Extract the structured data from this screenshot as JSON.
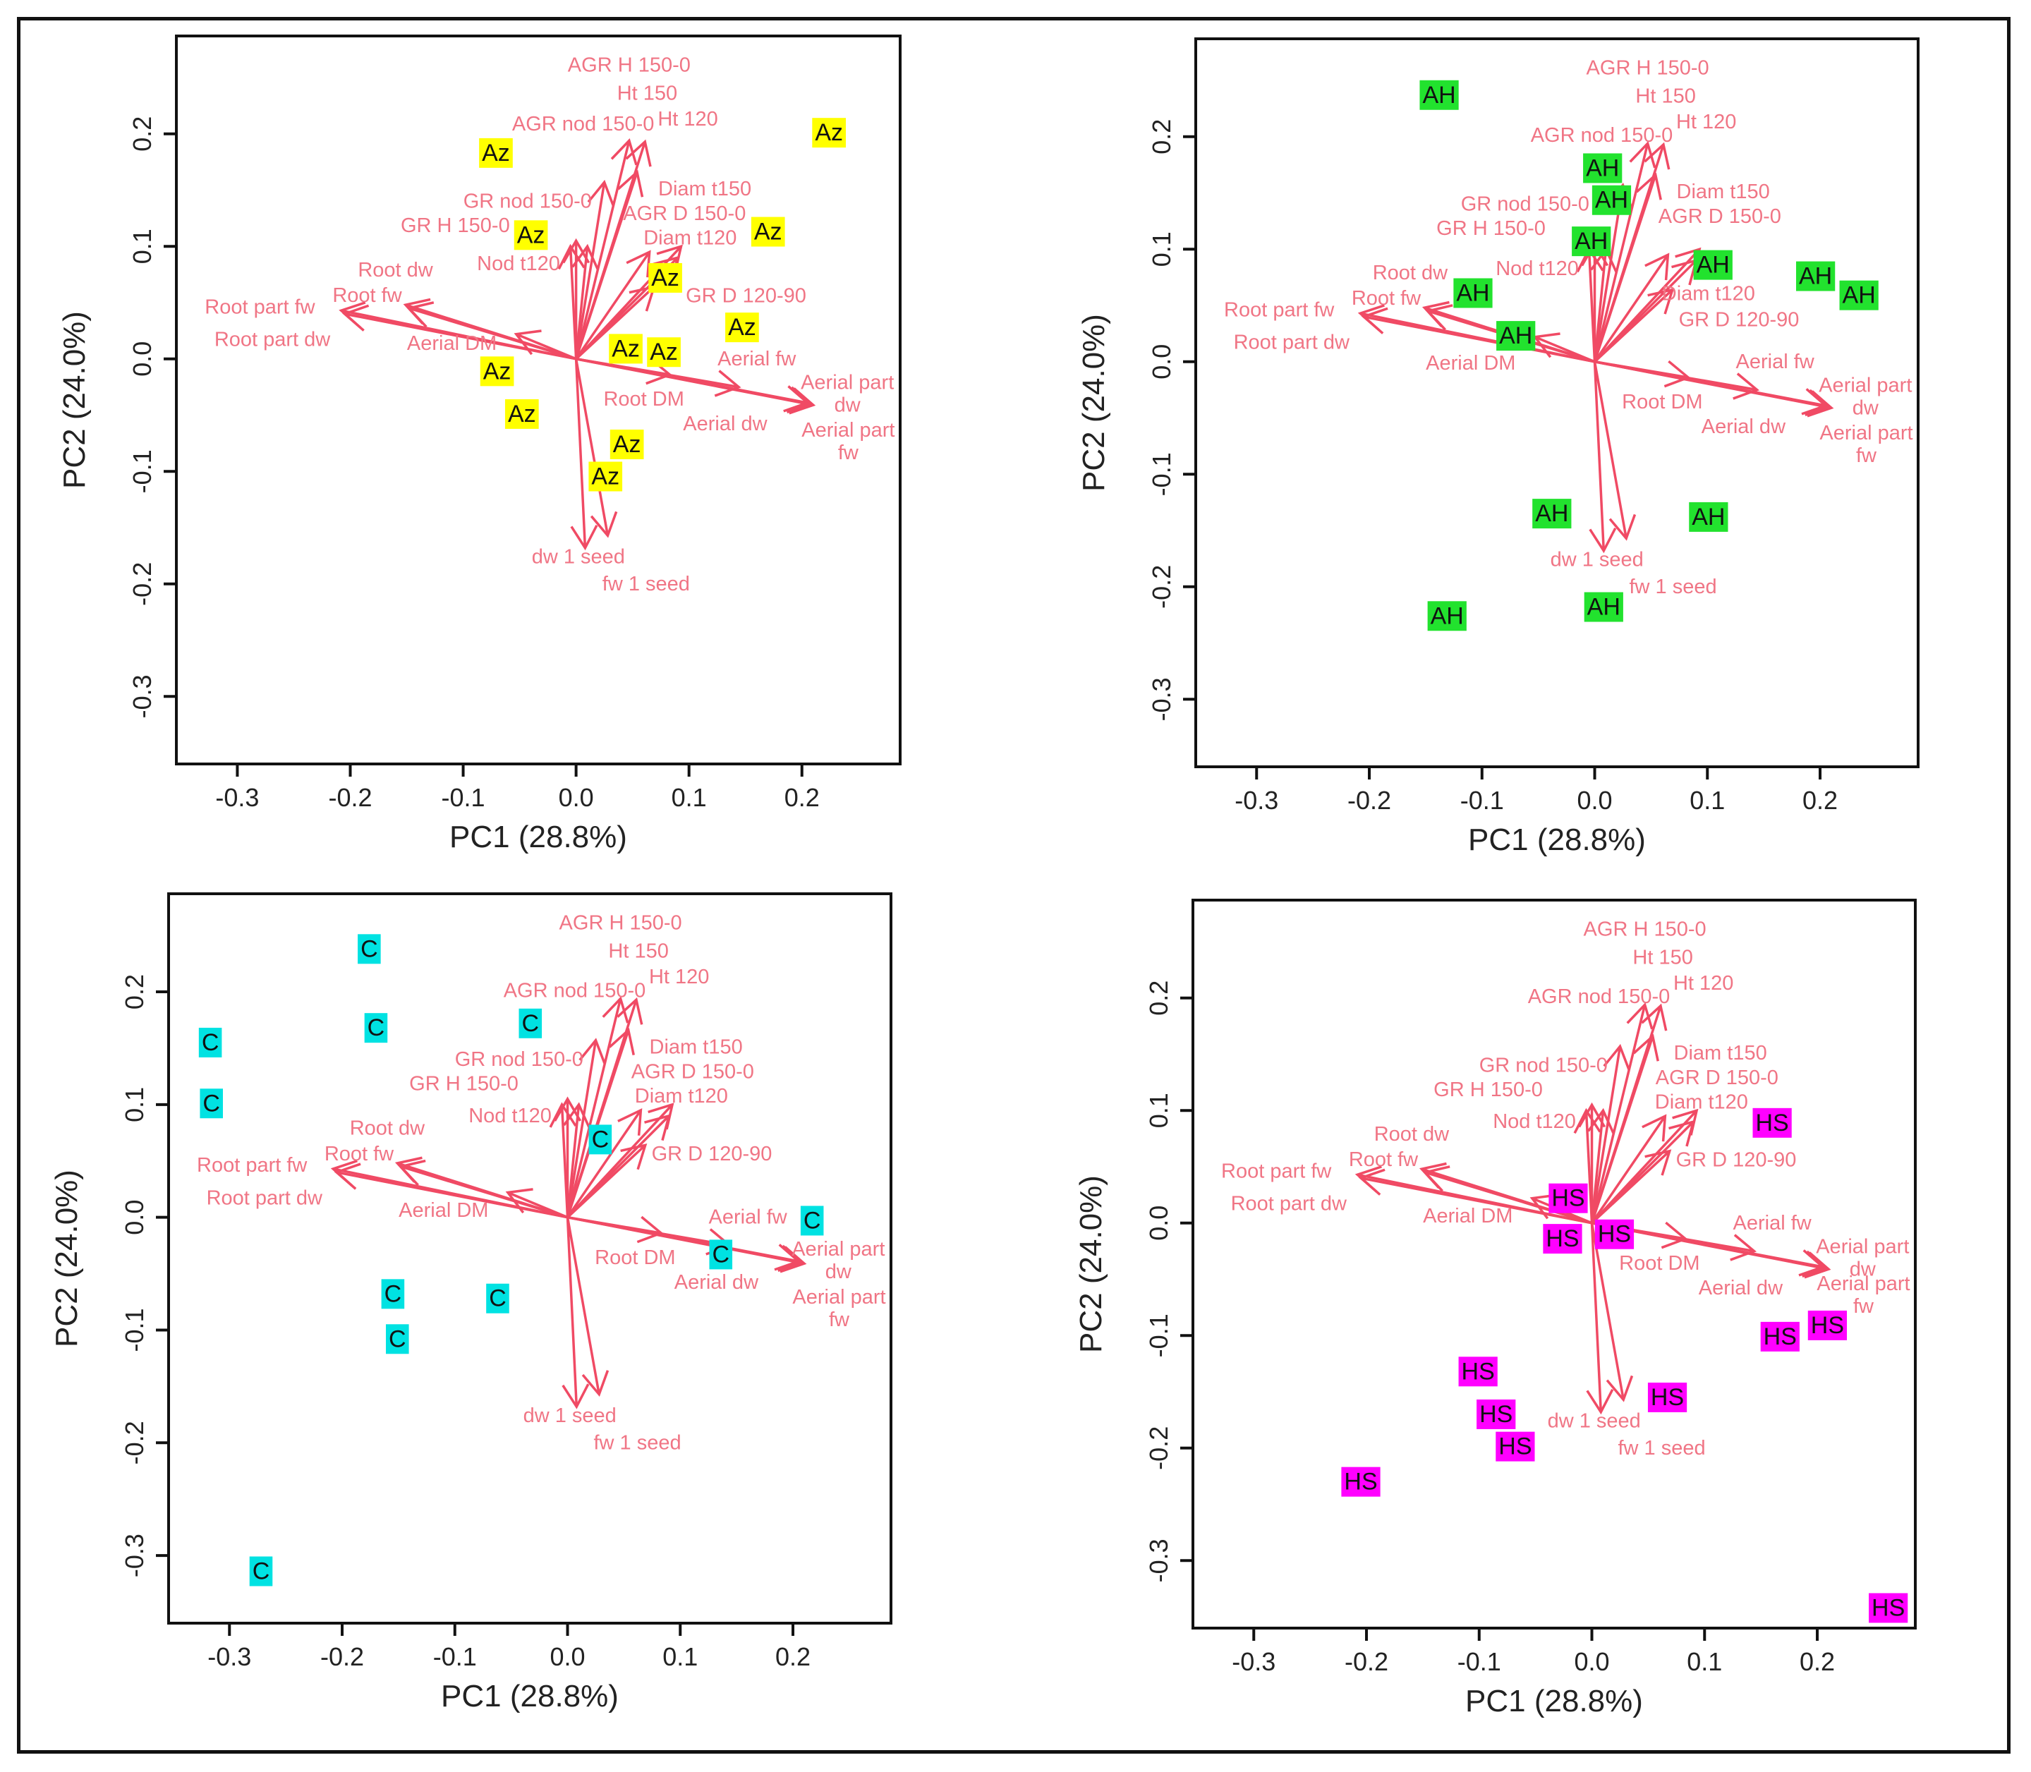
{
  "chart_data": {
    "type": "scatter",
    "subtype": "PCA biplot",
    "xlabel": "PC1 (28.8%)",
    "ylabel": "PC2 (24.0%)",
    "xlim": [
      -0.354,
      0.287
    ],
    "ylim": [
      -0.36,
      0.287
    ],
    "xticks": [
      -0.3,
      -0.2,
      -0.1,
      0.0,
      0.1,
      0.2
    ],
    "yticks": [
      -0.3,
      -0.2,
      -0.1,
      0.0,
      0.1,
      0.2
    ],
    "xtick_labels": [
      "-0.3",
      "-0.2",
      "-0.1",
      "0.0",
      "0.1",
      "0.2"
    ],
    "ytick_labels": [
      "-0.3",
      "-0.2",
      "-0.1",
      "0.0",
      "0.1",
      "0.2"
    ],
    "grid": false,
    "arrow_color": "#f04a64",
    "arrow_label_color": "#f07585",
    "loadings": [
      {
        "lines": [
          "Root part fw"
        ],
        "tip": [
          -0.208,
          0.043
        ],
        "label_at": [
          -0.28,
          0.046
        ]
      },
      {
        "lines": [
          "Root part dw"
        ],
        "tip": [
          -0.205,
          0.04
        ],
        "label_at": [
          -0.269,
          0.017
        ]
      },
      {
        "lines": [
          "Root dw"
        ],
        "tip": [
          -0.151,
          0.048
        ],
        "label_at": [
          -0.16,
          0.079
        ]
      },
      {
        "lines": [
          "Root fw"
        ],
        "tip": [
          -0.148,
          0.045
        ],
        "label_at": [
          -0.185,
          0.06
        ]
      },
      {
        "lines": [
          "Aerial DM"
        ],
        "tip": [
          -0.053,
          0.022
        ],
        "label_at": [
          -0.11,
          0.006
        ]
      },
      {
        "lines": [
          "Root DM"
        ],
        "tip": [
          0.083,
          -0.014
        ],
        "label_at": [
          0.06,
          -0.036
        ]
      },
      {
        "lines": [
          "Aerial fw"
        ],
        "tip": [
          0.144,
          -0.025
        ],
        "label_at": [
          0.16,
          0.0
        ]
      },
      {
        "lines": [
          "Aerial dw"
        ],
        "tip": [
          0.205,
          -0.039
        ],
        "label_at": [
          0.132,
          -0.056
        ]
      },
      {
        "lines": [
          "Aerial part",
          "dw"
        ],
        "tip": [
          0.208,
          -0.04
        ],
        "label_at": [
          0.244,
          -0.021
        ]
      },
      {
        "lines": [
          "Aerial part",
          "fw"
        ],
        "tip": [
          0.21,
          -0.041
        ],
        "label_at": [
          0.241,
          -0.054
        ]
      },
      {
        "lines": [
          "dw 1 seed"
        ],
        "tip": [
          0.008,
          -0.168
        ],
        "label_at": [
          0.002,
          -0.176
        ]
      },
      {
        "lines": [
          "fw 1 seed"
        ],
        "tip": [
          0.028,
          -0.157
        ],
        "label_at": [
          0.062,
          -0.2
        ]
      },
      {
        "lines": [
          "AGR H 150-0"
        ],
        "tip": [
          0.047,
          0.194
        ],
        "label_at": [
          0.047,
          0.261
        ]
      },
      {
        "lines": [
          "Ht 150"
        ],
        "tip": [
          0.061,
          0.193
        ],
        "label_at": [
          0.063,
          0.236
        ]
      },
      {
        "lines": [
          "Ht 120"
        ],
        "tip": [
          0.054,
          0.166
        ],
        "label_at": [
          0.099,
          0.215
        ]
      },
      {
        "lines": [
          "AGR nod 150-0"
        ],
        "tip": [
          0.025,
          0.157
        ],
        "label_at": [
          0.01,
          0.201
        ]
      },
      {
        "lines": [
          "GR nod 150-0"
        ],
        "tip": [
          0.0,
          0.105
        ],
        "label_at": [
          -0.043,
          0.14
        ]
      },
      {
        "lines": [
          "GR H 150-0"
        ],
        "tip": [
          0.01,
          0.1
        ],
        "label_at": [
          -0.092,
          0.124
        ]
      },
      {
        "lines": [
          "Nod t120"
        ],
        "tip": [
          -0.005,
          0.1
        ],
        "label_at": [
          -0.051,
          0.09
        ]
      },
      {
        "lines": [
          "Diam t150"
        ],
        "tip": [
          0.093,
          0.1
        ],
        "label_at": [
          0.114,
          0.151
        ]
      },
      {
        "lines": [
          "AGR D 150-0"
        ],
        "tip": [
          0.065,
          0.095
        ],
        "label_at": [
          0.111,
          0.131
        ]
      },
      {
        "lines": [
          "Diam t120"
        ],
        "tip": [
          0.09,
          0.09
        ],
        "label_at": [
          0.101,
          0.113
        ]
      },
      {
        "lines": [
          "GR D 120-90"
        ],
        "tip": [
          0.069,
          0.064
        ],
        "label_at": [
          0.128,
          0.056
        ]
      }
    ],
    "panels": [
      {
        "group": "Az",
        "color": "#ffff00",
        "points": [
          [
            -0.071,
            0.183
          ],
          [
            0.224,
            0.201
          ],
          [
            -0.04,
            0.11
          ],
          [
            0.17,
            0.113
          ],
          [
            0.079,
            0.072
          ],
          [
            0.147,
            0.028
          ],
          [
            0.044,
            0.009
          ],
          [
            0.074,
            0.006
          ],
          [
            -0.07,
            -0.011
          ],
          [
            -0.048,
            -0.049
          ],
          [
            0.045,
            -0.076
          ],
          [
            0.026,
            -0.097
          ]
        ]
      },
      {
        "group": "AH",
        "color": "#22e22e",
        "points": [
          [
            -0.138,
            0.237
          ],
          [
            0.007,
            0.172
          ],
          [
            0.015,
            0.153
          ],
          [
            -0.003,
            0.107
          ],
          [
            0.105,
            0.086
          ],
          [
            0.196,
            0.076
          ],
          [
            0.227,
            0.059
          ],
          [
            -0.108,
            0.061
          ],
          [
            -0.07,
            0.023
          ],
          [
            -0.038,
            -0.135
          ],
          [
            0.101,
            -0.138
          ],
          [
            -0.131,
            -0.226
          ],
          [
            0.008,
            -0.218
          ]
        ]
      },
      {
        "group": "C",
        "color": "#00e2e2",
        "points": [
          [
            -0.176,
            0.238
          ],
          [
            -0.317,
            0.155
          ],
          [
            -0.17,
            0.168
          ],
          [
            -0.033,
            0.172
          ],
          [
            -0.316,
            0.101
          ],
          [
            0.029,
            0.069
          ],
          [
            0.217,
            -0.003
          ],
          [
            0.136,
            -0.033
          ],
          [
            -0.155,
            -0.068
          ],
          [
            -0.062,
            -0.072
          ],
          [
            -0.151,
            -0.108
          ],
          [
            -0.272,
            -0.314
          ]
        ]
      },
      {
        "group": "HS",
        "color": "#ff00ff",
        "points": [
          [
            0.16,
            0.089
          ],
          [
            -0.021,
            0.022
          ],
          [
            0.02,
            -0.01
          ],
          [
            -0.026,
            -0.014
          ],
          [
            0.167,
            -0.101
          ],
          [
            0.209,
            -0.091
          ],
          [
            -0.101,
            -0.132
          ],
          [
            0.067,
            -0.155
          ],
          [
            -0.085,
            -0.17
          ],
          [
            -0.068,
            -0.193
          ],
          [
            -0.205,
            -0.23
          ],
          [
            0.263,
            -0.344
          ]
        ]
      }
    ]
  }
}
